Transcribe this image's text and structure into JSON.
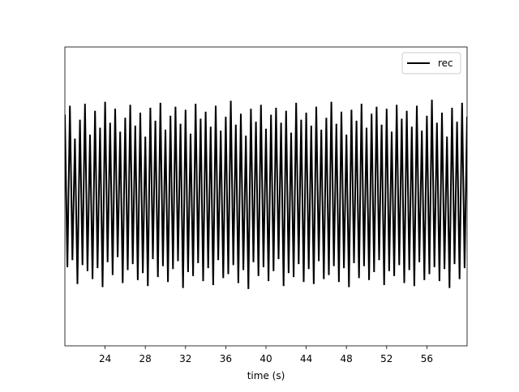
{
  "chart_data": {
    "type": "line",
    "xlabel": "time (s)",
    "x": [
      20,
      20.25,
      20.5,
      20.75,
      21,
      21.25,
      21.5,
      21.75,
      22,
      22.25,
      22.5,
      22.75,
      23,
      23.25,
      23.5,
      23.75,
      24,
      24.25,
      24.5,
      24.75,
      25,
      25.25,
      25.5,
      25.75,
      26,
      26.25,
      26.5,
      26.75,
      27,
      27.25,
      27.5,
      27.75,
      28,
      28.25,
      28.5,
      28.75,
      29,
      29.25,
      29.5,
      29.75,
      30,
      30.25,
      30.5,
      30.75,
      31,
      31.25,
      31.5,
      31.75,
      32,
      32.25,
      32.5,
      32.75,
      33,
      33.25,
      33.5,
      33.75,
      34,
      34.25,
      34.5,
      34.75,
      35,
      35.25,
      35.5,
      35.75,
      36,
      36.25,
      36.5,
      36.75,
      37,
      37.25,
      37.5,
      37.75,
      38,
      38.25,
      38.5,
      38.75,
      39,
      39.25,
      39.5,
      39.75,
      40,
      40.25,
      40.5,
      40.75,
      41,
      41.25,
      41.5,
      41.75,
      42,
      42.25,
      42.5,
      42.75,
      43,
      43.25,
      43.5,
      43.75,
      44,
      44.25,
      44.5,
      44.75,
      45,
      45.25,
      45.5,
      45.75,
      46,
      46.25,
      46.5,
      46.75,
      47,
      47.25,
      47.5,
      47.75,
      48,
      48.25,
      48.5,
      48.75,
      49,
      49.25,
      49.5,
      49.75,
      50,
      50.25,
      50.5,
      50.75,
      51,
      51.25,
      51.5,
      51.75,
      52,
      52.25,
      52.5,
      52.75,
      53,
      53.25,
      53.5,
      53.75,
      54,
      54.25,
      54.5,
      54.75,
      55,
      55.25,
      55.5,
      55.75,
      56,
      56.25,
      56.5,
      56.75,
      57,
      57.25,
      57.5,
      57.75,
      58,
      58.25,
      58.5,
      58.75,
      59,
      59.25,
      59.5,
      59.75,
      60
    ],
    "series": [
      {
        "name": "rec",
        "color": "#000000",
        "values": [
          0.82,
          -0.71,
          0.91,
          -0.64,
          0.58,
          -0.88,
          0.77,
          -0.69,
          0.93,
          -0.75,
          0.62,
          -0.83,
          0.86,
          -0.72,
          0.69,
          -0.91,
          0.95,
          -0.66,
          0.74,
          -0.79,
          0.88,
          -0.61,
          0.65,
          -0.87,
          0.79,
          -0.74,
          0.92,
          -0.68,
          0.71,
          -0.84,
          0.84,
          -0.77,
          0.6,
          -0.9,
          0.89,
          -0.63,
          0.76,
          -0.81,
          0.94,
          -0.7,
          0.67,
          -0.86,
          0.81,
          -0.73,
          0.9,
          -0.65,
          0.73,
          -0.92,
          0.87,
          -0.76,
          0.63,
          -0.8,
          0.93,
          -0.67,
          0.78,
          -0.85,
          0.85,
          -0.72,
          0.7,
          -0.89,
          0.91,
          -0.64,
          0.66,
          -0.82,
          0.8,
          -0.78,
          0.96,
          -0.69,
          0.72,
          -0.87,
          0.83,
          -0.74,
          0.61,
          -0.93,
          0.88,
          -0.66,
          0.75,
          -0.8,
          0.92,
          -0.71,
          0.68,
          -0.85,
          0.82,
          -0.75,
          0.89,
          -0.63,
          0.74,
          -0.9,
          0.86,
          -0.77,
          0.64,
          -0.81,
          0.94,
          -0.68,
          0.77,
          -0.86,
          0.84,
          -0.73,
          0.71,
          -0.88,
          0.9,
          -0.65,
          0.67,
          -0.83,
          0.79,
          -0.79,
          0.95,
          -0.7,
          0.73,
          -0.86,
          0.85,
          -0.72,
          0.62,
          -0.91,
          0.87,
          -0.67,
          0.76,
          -0.82,
          0.93,
          -0.7,
          0.69,
          -0.84,
          0.83,
          -0.76,
          0.9,
          -0.64,
          0.72,
          -0.89,
          0.88,
          -0.75,
          0.65,
          -0.8,
          0.92,
          -0.69,
          0.78,
          -0.87,
          0.86,
          -0.74,
          0.7,
          -0.9,
          0.91,
          -0.66,
          0.66,
          -0.84,
          0.81,
          -0.78,
          0.97,
          -0.71,
          0.74,
          -0.85,
          0.84,
          -0.73,
          0.6,
          -0.92,
          0.89,
          -0.68,
          0.75,
          -0.83,
          0.94,
          -0.72,
          0.8
        ]
      }
    ],
    "xlim": [
      20,
      60
    ],
    "xticks": [
      24,
      28,
      32,
      36,
      40,
      44,
      48,
      52,
      56
    ],
    "ylim": [
      -1.5,
      1.5
    ],
    "legend": "upper right"
  }
}
